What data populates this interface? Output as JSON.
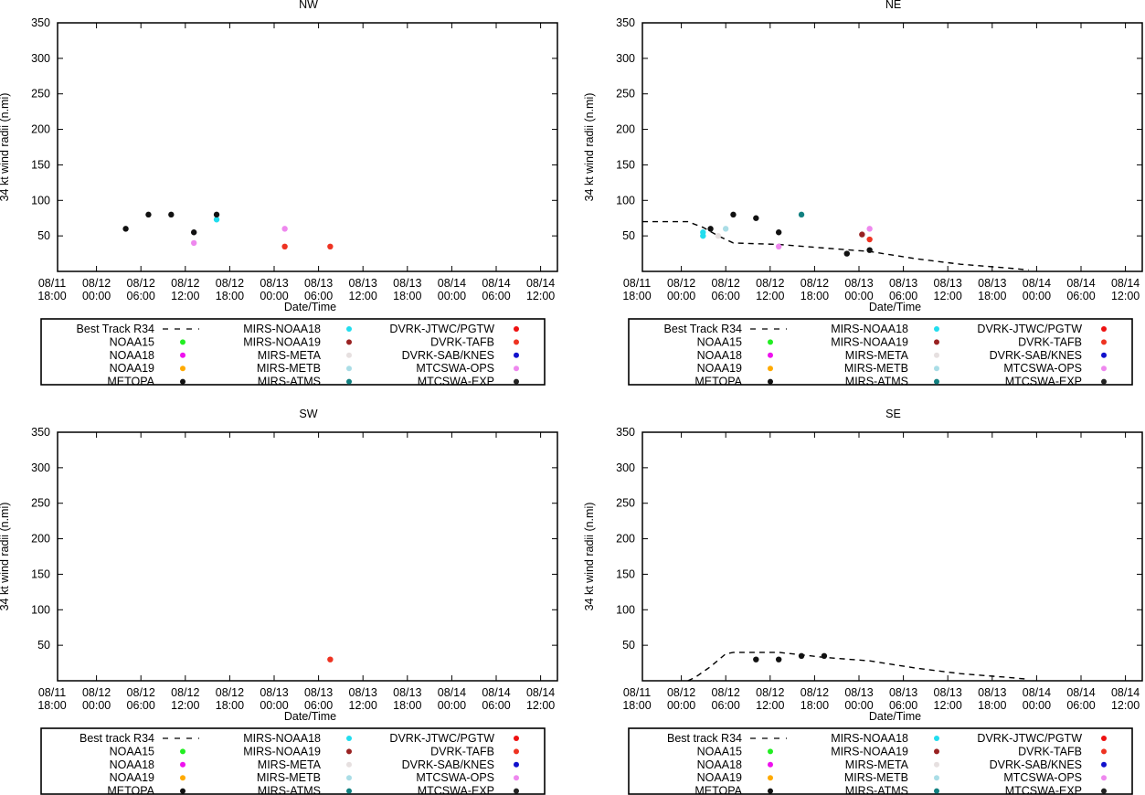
{
  "colors": {
    "NOAA15": "#22ee22",
    "NOAA18": "#ee11ee",
    "NOAA19": "#ffaa00",
    "METOPA": "#111111",
    "MIRS-NOAA18": "#22ddee",
    "MIRS-NOAA19": "#992222",
    "MIRS-META": "#e6e0e0",
    "MIRS-METB": "#aadde6",
    "MIRS-ATMS": "#118080",
    "DVRK-JTWC/PGTW": "#ee1111",
    "DVRK-TAFB": "#ee3322",
    "DVRK-SAB/KNES": "#1111cc",
    "MTCSWA-OPS": "#ee88ee",
    "MTCSWA-EXP": "#222222",
    "best_track": "#000000"
  },
  "chart_data": [
    {
      "type": "scatter",
      "title": "NW",
      "xlabel": "Date/Time",
      "ylabel": "34 kt wind radii (n.mi)",
      "xlim": [
        0,
        66
      ],
      "ylim": [
        0,
        350
      ],
      "yticks": [
        "350",
        "300",
        "250",
        "200",
        "150",
        "100",
        "50"
      ],
      "xtick_labels": [
        [
          "08/11",
          "18:00"
        ],
        [
          "08/12",
          "00:00"
        ],
        [
          "08/12",
          "06:00"
        ],
        [
          "08/12",
          "12:00"
        ],
        [
          "08/12",
          "18:00"
        ],
        [
          "08/13",
          "00:00"
        ],
        [
          "08/13",
          "06:00"
        ],
        [
          "08/13",
          "12:00"
        ],
        [
          "08/13",
          "18:00"
        ],
        [
          "08/14",
          "00:00"
        ],
        [
          "08/14",
          "06:00"
        ],
        [
          "08/14",
          "12:00"
        ]
      ],
      "best_track": [],
      "points": [
        {
          "source": "METOPA",
          "x": 9,
          "y": 60
        },
        {
          "source": "METOPA",
          "x": 12,
          "y": 80
        },
        {
          "source": "METOPA",
          "x": 15,
          "y": 80
        },
        {
          "source": "METOPA",
          "x": 18,
          "y": 55
        },
        {
          "source": "MTCSWA-OPS",
          "x": 18,
          "y": 40
        },
        {
          "source": "MIRS-NOAA18",
          "x": 21,
          "y": 73
        },
        {
          "source": "METOPA",
          "x": 21,
          "y": 80
        },
        {
          "source": "MTCSWA-OPS",
          "x": 30,
          "y": 60
        },
        {
          "source": "DVRK-TAFB",
          "x": 30,
          "y": 35
        },
        {
          "source": "DVRK-TAFB",
          "x": 36,
          "y": 35
        }
      ],
      "legend": [
        [
          "Best Track R34",
          "NOAA15",
          "NOAA18",
          "NOAA19",
          "METOPA"
        ],
        [
          "MIRS-NOAA18",
          "MIRS-NOAA19",
          "MIRS-META",
          "MIRS-METB",
          "MIRS-ATMS"
        ],
        [
          "DVRK-JTWC/PGTW",
          "DVRK-TAFB",
          "DVRK-SAB/KNES",
          "MTCSWA-OPS",
          "MTCSWA-EXP"
        ]
      ]
    },
    {
      "type": "scatter",
      "title": "NE",
      "xlabel": "Date/Time",
      "ylabel": "34 kt wind radii (n.mi)",
      "xlim": [
        0,
        66
      ],
      "ylim": [
        0,
        350
      ],
      "yticks": [
        "350",
        "300",
        "250",
        "200",
        "150",
        "100",
        "50"
      ],
      "xtick_labels": [
        [
          "08/11",
          "18:00"
        ],
        [
          "08/12",
          "00:00"
        ],
        [
          "08/12",
          "06:00"
        ],
        [
          "08/12",
          "12:00"
        ],
        [
          "08/12",
          "18:00"
        ],
        [
          "08/13",
          "00:00"
        ],
        [
          "08/13",
          "06:00"
        ],
        [
          "08/13",
          "12:00"
        ],
        [
          "08/13",
          "18:00"
        ],
        [
          "08/14",
          "00:00"
        ],
        [
          "08/14",
          "06:00"
        ],
        [
          "08/14",
          "12:00"
        ]
      ],
      "best_track": [
        [
          0,
          70
        ],
        [
          4,
          70
        ],
        [
          6,
          70
        ],
        [
          8,
          62
        ],
        [
          10,
          50
        ],
        [
          12,
          40
        ],
        [
          18,
          38
        ],
        [
          24,
          33
        ],
        [
          30,
          28
        ],
        [
          36,
          18
        ],
        [
          42,
          10
        ],
        [
          48,
          5
        ],
        [
          51,
          2
        ]
      ],
      "points": [
        {
          "source": "MIRS-NOAA18",
          "x": 8,
          "y": 55
        },
        {
          "source": "MIRS-NOAA18",
          "x": 8,
          "y": 50
        },
        {
          "source": "METOPA",
          "x": 9,
          "y": 60
        },
        {
          "source": "MIRS-META",
          "x": 10,
          "y": 50
        },
        {
          "source": "MIRS-METB",
          "x": 11,
          "y": 60
        },
        {
          "source": "METOPA",
          "x": 12,
          "y": 80
        },
        {
          "source": "METOPA",
          "x": 15,
          "y": 75
        },
        {
          "source": "METOPA",
          "x": 18,
          "y": 55
        },
        {
          "source": "MTCSWA-OPS",
          "x": 18,
          "y": 35
        },
        {
          "source": "MIRS-ATMS",
          "x": 21,
          "y": 80
        },
        {
          "source": "METOPA",
          "x": 27,
          "y": 25
        },
        {
          "source": "MIRS-NOAA19",
          "x": 29,
          "y": 52
        },
        {
          "source": "MTCSWA-OPS",
          "x": 30,
          "y": 60
        },
        {
          "source": "DVRK-TAFB",
          "x": 30,
          "y": 45
        },
        {
          "source": "METOPA",
          "x": 30,
          "y": 30
        }
      ],
      "legend": [
        [
          "Best Track R34",
          "NOAA15",
          "NOAA18",
          "NOAA19",
          "METOPA"
        ],
        [
          "MIRS-NOAA18",
          "MIRS-NOAA19",
          "MIRS-META",
          "MIRS-METB",
          "MIRS-ATMS"
        ],
        [
          "DVRK-JTWC/PGTW",
          "DVRK-TAFB",
          "DVRK-SAB/KNES",
          "MTCSWA-OPS",
          "MTCSWA-EXP"
        ]
      ]
    },
    {
      "type": "scatter",
      "title": "SW",
      "xlabel": "Date/Time",
      "ylabel": "34 kt wind radii (n.mi)",
      "xlim": [
        0,
        66
      ],
      "ylim": [
        0,
        350
      ],
      "yticks": [
        "350",
        "300",
        "250",
        "200",
        "150",
        "100",
        "50"
      ],
      "xtick_labels": [
        [
          "08/11",
          "18:00"
        ],
        [
          "08/12",
          "00:00"
        ],
        [
          "08/12",
          "06:00"
        ],
        [
          "08/12",
          "12:00"
        ],
        [
          "08/12",
          "18:00"
        ],
        [
          "08/13",
          "00:00"
        ],
        [
          "08/13",
          "06:00"
        ],
        [
          "08/13",
          "12:00"
        ],
        [
          "08/13",
          "18:00"
        ],
        [
          "08/14",
          "00:00"
        ],
        [
          "08/14",
          "06:00"
        ],
        [
          "08/14",
          "12:00"
        ]
      ],
      "best_track": [],
      "points": [
        {
          "source": "DVRK-TAFB",
          "x": 36,
          "y": 30
        }
      ],
      "legend": [
        [
          "Best track R34",
          "NOAA15",
          "NOAA18",
          "NOAA19",
          "METOPA"
        ],
        [
          "MIRS-NOAA18",
          "MIRS-NOAA19",
          "MIRS-META",
          "MIRS-METB",
          "MIRS-ATMS"
        ],
        [
          "DVRK-JTWC/PGTW",
          "DVRK-TAFB",
          "DVRK-SAB/KNES",
          "MTCSWA-OPS",
          "MTCSWA-EXP"
        ]
      ]
    },
    {
      "type": "scatter",
      "title": "SE",
      "xlabel": "Date/Time",
      "ylabel": "34 kt wind radii (n.mi)",
      "xlim": [
        0,
        66
      ],
      "ylim": [
        0,
        350
      ],
      "yticks": [
        "350",
        "300",
        "250",
        "200",
        "150",
        "100",
        "50"
      ],
      "xtick_labels": [
        [
          "08/11",
          "18:00"
        ],
        [
          "08/12",
          "00:00"
        ],
        [
          "08/12",
          "06:00"
        ],
        [
          "08/12",
          "12:00"
        ],
        [
          "08/12",
          "18:00"
        ],
        [
          "08/13",
          "00:00"
        ],
        [
          "08/13",
          "06:00"
        ],
        [
          "08/13",
          "12:00"
        ],
        [
          "08/13",
          "18:00"
        ],
        [
          "08/14",
          "00:00"
        ],
        [
          "08/14",
          "06:00"
        ],
        [
          "08/14",
          "12:00"
        ]
      ],
      "best_track": [
        [
          6,
          0
        ],
        [
          7,
          5
        ],
        [
          9,
          20
        ],
        [
          11,
          38
        ],
        [
          12,
          40
        ],
        [
          18,
          40
        ],
        [
          24,
          33
        ],
        [
          30,
          28
        ],
        [
          36,
          18
        ],
        [
          42,
          10
        ],
        [
          48,
          5
        ],
        [
          51,
          2
        ]
      ],
      "points": [
        {
          "source": "METOPA",
          "x": 15,
          "y": 30
        },
        {
          "source": "METOPA",
          "x": 18,
          "y": 30
        },
        {
          "source": "METOPA",
          "x": 21,
          "y": 35
        },
        {
          "source": "METOPA",
          "x": 24,
          "y": 35
        }
      ],
      "legend": [
        [
          "Best track R34",
          "NOAA15",
          "NOAA18",
          "NOAA19",
          "METOPA"
        ],
        [
          "MIRS-NOAA18",
          "MIRS-NOAA19",
          "MIRS-META",
          "MIRS-METB",
          "MIRS-ATMS"
        ],
        [
          "DVRK-JTWC/PGTW",
          "DVRK-TAFB",
          "DVRK-SAB/KNES",
          "MTCSWA-OPS",
          "MTCSWA-EXP"
        ]
      ]
    }
  ]
}
